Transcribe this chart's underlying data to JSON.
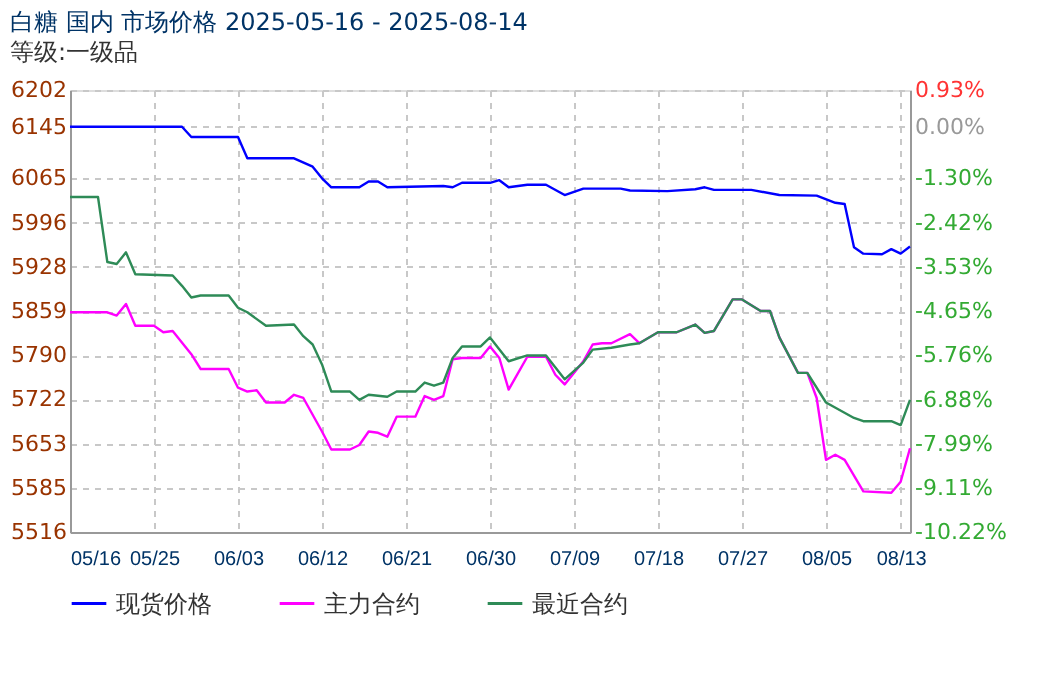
{
  "chart_data": {
    "type": "line",
    "title": "白糖 国内 市场价格 2025-05-16 - 2025-08-14",
    "subtitle": "等级:一级品",
    "xlim": [
      "2025-05-16",
      "2025-08-14"
    ],
    "xticks": [
      {
        "value": "2025-05-16",
        "label": "05/16"
      },
      {
        "value": "2025-05-25",
        "label": "05/25"
      },
      {
        "value": "2025-06-03",
        "label": "06/03"
      },
      {
        "value": "2025-06-12",
        "label": "06/12"
      },
      {
        "value": "2025-06-21",
        "label": "06/21"
      },
      {
        "value": "2025-06-30",
        "label": "06/30"
      },
      {
        "value": "2025-07-09",
        "label": "07/09"
      },
      {
        "value": "2025-07-18",
        "label": "07/18"
      },
      {
        "value": "2025-07-27",
        "label": "07/27"
      },
      {
        "value": "2025-08-05",
        "label": "08/05"
      },
      {
        "value": "2025-08-13",
        "label": "08/13"
      }
    ],
    "ylim": [
      5516,
      6202
    ],
    "yticks": [
      5516,
      5585,
      5653,
      5722,
      5790,
      5859,
      5928,
      5996,
      6065,
      6145,
      6202
    ],
    "y2lim": [
      -10.22,
      0.93
    ],
    "y2ticks": [
      {
        "value": -10.22,
        "label": "-10.22%"
      },
      {
        "value": -9.11,
        "label": "-9.11%"
      },
      {
        "value": -7.99,
        "label": "-7.99%"
      },
      {
        "value": -6.88,
        "label": "-6.88%"
      },
      {
        "value": -5.76,
        "label": "-5.76%"
      },
      {
        "value": -4.65,
        "label": "-4.65%"
      },
      {
        "value": -3.53,
        "label": "-3.53%"
      },
      {
        "value": -2.42,
        "label": "-2.42%"
      },
      {
        "value": -1.3,
        "label": "-1.30%"
      },
      {
        "value": 0,
        "label": "0.00%"
      },
      {
        "value": 0.93,
        "label": "0.93%"
      }
    ],
    "grid": true,
    "legend": "bottom",
    "line_style": "solid",
    "series": [
      {
        "name": "现货价格",
        "color": "#0000ff",
        "x": [
          "2025-05-16",
          "2025-05-28",
          "2025-05-29",
          "2025-06-03",
          "2025-06-04",
          "2025-06-09",
          "2025-06-11",
          "2025-06-12",
          "2025-06-13",
          "2025-06-16",
          "2025-06-17",
          "2025-06-18",
          "2025-06-19",
          "2025-06-25",
          "2025-06-26",
          "2025-06-27",
          "2025-06-30",
          "2025-07-01",
          "2025-07-02",
          "2025-07-04",
          "2025-07-06",
          "2025-07-08",
          "2025-07-10",
          "2025-07-14",
          "2025-07-15",
          "2025-07-19",
          "2025-07-22",
          "2025-07-23",
          "2025-07-24",
          "2025-07-28",
          "2025-07-31",
          "2025-08-04",
          "2025-08-06",
          "2025-08-07",
          "2025-08-08",
          "2025-08-09",
          "2025-08-11",
          "2025-08-12",
          "2025-08-13",
          "2025-08-14"
        ],
        "values": [
          6145,
          6145,
          6129,
          6129,
          6096,
          6096,
          6083,
          6065,
          6051,
          6051,
          6060,
          6060,
          6051,
          6053,
          6051,
          6058,
          6058,
          6062,
          6051,
          6055,
          6055,
          6039,
          6049,
          6049,
          6046,
          6045,
          6048,
          6051,
          6047,
          6047,
          6039,
          6038,
          6027,
          6025,
          5958,
          5948,
          5947,
          5955,
          5948,
          5959
        ]
      },
      {
        "name": "主力合约",
        "color": "#ff00ff",
        "x": [
          "2025-05-16",
          "2025-05-20",
          "2025-05-21",
          "2025-05-22",
          "2025-05-23",
          "2025-05-25",
          "2025-05-26",
          "2025-05-27",
          "2025-05-29",
          "2025-05-30",
          "2025-06-02",
          "2025-06-03",
          "2025-06-04",
          "2025-06-05",
          "2025-06-06",
          "2025-06-08",
          "2025-06-09",
          "2025-06-10",
          "2025-06-12",
          "2025-06-13",
          "2025-06-15",
          "2025-06-16",
          "2025-06-17",
          "2025-06-18",
          "2025-06-19",
          "2025-06-20",
          "2025-06-22",
          "2025-06-23",
          "2025-06-24",
          "2025-06-25",
          "2025-06-26",
          "2025-06-27",
          "2025-06-29",
          "2025-06-30",
          "2025-07-01",
          "2025-07-02",
          "2025-07-04",
          "2025-07-06",
          "2025-07-07",
          "2025-07-08",
          "2025-07-10",
          "2025-07-11",
          "2025-07-12",
          "2025-07-13",
          "2025-07-15",
          "2025-07-16",
          "2025-07-18",
          "2025-07-20",
          "2025-07-22",
          "2025-07-23",
          "2025-07-24",
          "2025-07-26",
          "2025-07-27",
          "2025-07-29",
          "2025-07-30",
          "2025-07-31",
          "2025-08-02",
          "2025-08-03",
          "2025-08-04",
          "2025-08-05",
          "2025-08-06",
          "2025-08-07",
          "2025-08-09",
          "2025-08-12",
          "2025-08-13",
          "2025-08-14"
        ],
        "values": [
          5857,
          5857,
          5852,
          5870,
          5836,
          5836,
          5826,
          5828,
          5792,
          5769,
          5769,
          5740,
          5734,
          5736,
          5717,
          5717,
          5729,
          5724,
          5672,
          5644,
          5644,
          5651,
          5672,
          5670,
          5664,
          5695,
          5695,
          5727,
          5721,
          5727,
          5784,
          5786,
          5786,
          5804,
          5786,
          5737,
          5788,
          5788,
          5760,
          5745,
          5781,
          5807,
          5809,
          5809,
          5823,
          5809,
          5826,
          5826,
          5838,
          5825,
          5828,
          5877,
          5877,
          5859,
          5859,
          5818,
          5763,
          5763,
          5724,
          5628,
          5636,
          5628,
          5579,
          5577,
          5594,
          5646
        ]
      },
      {
        "name": "最近合约",
        "color": "#2e8b57",
        "x": [
          "2025-05-16",
          "2025-05-19",
          "2025-05-20",
          "2025-05-21",
          "2025-05-22",
          "2025-05-23",
          "2025-05-27",
          "2025-05-28",
          "2025-05-29",
          "2025-05-30",
          "2025-06-02",
          "2025-06-03",
          "2025-06-04",
          "2025-06-06",
          "2025-06-09",
          "2025-06-10",
          "2025-06-11",
          "2025-06-12",
          "2025-06-13",
          "2025-06-15",
          "2025-06-16",
          "2025-06-17",
          "2025-06-19",
          "2025-06-20",
          "2025-06-22",
          "2025-06-23",
          "2025-06-24",
          "2025-06-25",
          "2025-06-26",
          "2025-06-27",
          "2025-06-29",
          "2025-06-30",
          "2025-07-02",
          "2025-07-04",
          "2025-07-06",
          "2025-07-08",
          "2025-07-10",
          "2025-07-11",
          "2025-07-13",
          "2025-07-15",
          "2025-07-16",
          "2025-07-18",
          "2025-07-20",
          "2025-07-22",
          "2025-07-23",
          "2025-07-24",
          "2025-07-26",
          "2025-07-27",
          "2025-07-29",
          "2025-07-30",
          "2025-07-31",
          "2025-08-02",
          "2025-08-03",
          "2025-08-05",
          "2025-08-08",
          "2025-08-09",
          "2025-08-12",
          "2025-08-13",
          "2025-08-14"
        ],
        "values": [
          6036,
          6036,
          5935,
          5932,
          5950,
          5916,
          5914,
          5898,
          5880,
          5883,
          5883,
          5864,
          5857,
          5836,
          5838,
          5820,
          5807,
          5776,
          5734,
          5734,
          5721,
          5729,
          5726,
          5734,
          5734,
          5748,
          5743,
          5748,
          5786,
          5804,
          5804,
          5818,
          5781,
          5790,
          5790,
          5753,
          5779,
          5799,
          5802,
          5807,
          5809,
          5826,
          5826,
          5838,
          5825,
          5828,
          5877,
          5877,
          5859,
          5859,
          5818,
          5763,
          5763,
          5717,
          5693,
          5688,
          5688,
          5682,
          5721
        ]
      }
    ]
  }
}
